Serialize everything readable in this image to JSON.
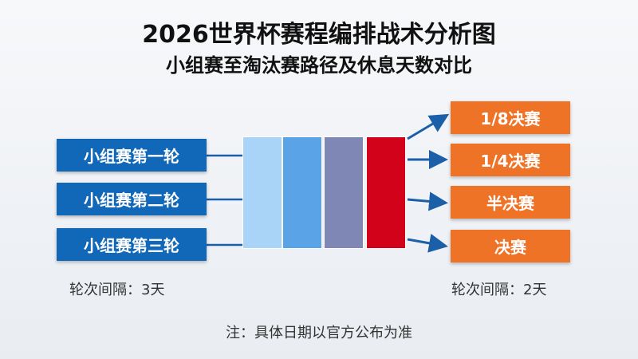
{
  "title": "2026世界杯赛程编排战术分析图",
  "subtitle": "小组赛至淘汰赛路径及休息天数对比",
  "group_stage": [
    {
      "label": "小组赛第一轮"
    },
    {
      "label": "小组赛第二轮"
    },
    {
      "label": "小组赛第三轮"
    }
  ],
  "knockout_stage": [
    {
      "label": "1/8决赛"
    },
    {
      "label": "1/4决赛"
    },
    {
      "label": "半决赛"
    },
    {
      "label": "决赛"
    }
  ],
  "bars": [
    {
      "color": "#a9d3f7"
    },
    {
      "color": "#5aa3e6"
    },
    {
      "color": "#7f88b4"
    },
    {
      "color": "#d1021a"
    }
  ],
  "left_note": "轮次间隔：3天",
  "right_note": "轮次间隔：2天",
  "footnote": "注：具体日期以官方公布为准",
  "colors": {
    "group_box": "#1167b8",
    "knockout_box": "#ef7326",
    "arrow": "#1a5fa8"
  }
}
